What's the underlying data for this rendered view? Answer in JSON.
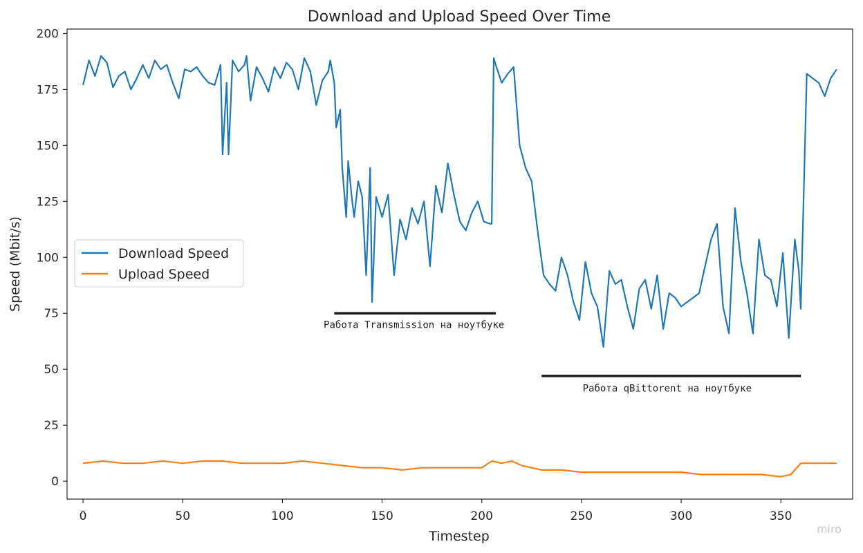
{
  "chart_data": {
    "type": "line",
    "title": "Download and Upload Speed Over Time",
    "xlabel": "Timestep",
    "ylabel": "Speed (Mbit/s)",
    "xlim": [
      -8,
      386
    ],
    "ylim": [
      -8,
      202
    ],
    "xticks": [
      0,
      50,
      100,
      150,
      200,
      250,
      300,
      350
    ],
    "yticks": [
      0,
      25,
      50,
      75,
      100,
      125,
      150,
      175,
      200
    ],
    "grid": false,
    "legend_position": "center-left",
    "series": [
      {
        "name": "Download Speed",
        "color": "#1f77b4",
        "x": [
          0,
          3,
          6,
          9,
          12,
          15,
          18,
          21,
          24,
          27,
          30,
          33,
          36,
          39,
          42,
          45,
          48,
          51,
          54,
          57,
          60,
          63,
          66,
          69,
          70,
          72,
          73,
          75,
          78,
          81,
          82,
          84,
          87,
          90,
          93,
          96,
          99,
          102,
          105,
          108,
          111,
          114,
          117,
          120,
          123,
          124,
          126,
          127,
          129,
          130,
          132,
          133,
          135,
          136,
          138,
          140,
          142,
          144,
          145,
          147,
          150,
          153,
          156,
          159,
          162,
          165,
          168,
          171,
          174,
          177,
          180,
          183,
          186,
          189,
          192,
          195,
          198,
          201,
          204,
          205,
          206,
          207,
          210,
          213,
          216,
          219,
          222,
          225,
          228,
          231,
          234,
          237,
          240,
          243,
          246,
          249,
          252,
          255,
          258,
          261,
          264,
          267,
          270,
          273,
          276,
          279,
          282,
          285,
          288,
          291,
          294,
          297,
          300,
          303,
          306,
          309,
          312,
          315,
          318,
          321,
          324,
          327,
          330,
          333,
          336,
          339,
          342,
          345,
          348,
          351,
          354,
          357,
          359,
          360,
          363,
          366,
          369,
          372,
          375,
          378
        ],
        "values": [
          177,
          188,
          181,
          190,
          187,
          176,
          181,
          183,
          175,
          180,
          186,
          180,
          188,
          184,
          186,
          178,
          171,
          184,
          183,
          185,
          181,
          178,
          177,
          186,
          146,
          178,
          146,
          188,
          183,
          186,
          190,
          170,
          185,
          180,
          174,
          185,
          180,
          187,
          184,
          175,
          189,
          183,
          168,
          179,
          183,
          188,
          178,
          158,
          166,
          140,
          118,
          143,
          125,
          118,
          134,
          127,
          92,
          140,
          80,
          127,
          118,
          128,
          92,
          117,
          108,
          122,
          115,
          125,
          96,
          132,
          120,
          142,
          128,
          116,
          112,
          120,
          125,
          116,
          115,
          115,
          189,
          186,
          178,
          182,
          185,
          150,
          140,
          134,
          112,
          92,
          88,
          85,
          100,
          92,
          80,
          72,
          98,
          84,
          78,
          60,
          94,
          88,
          90,
          78,
          68,
          86,
          90,
          77,
          92,
          68,
          84,
          82,
          78,
          80,
          82,
          84,
          96,
          108,
          115,
          78,
          66,
          122,
          98,
          84,
          66,
          108,
          92,
          90,
          78,
          102,
          64,
          108,
          94,
          77,
          182,
          180,
          178,
          172,
          180,
          184
        ]
      },
      {
        "name": "Upload Speed",
        "color": "#ff7f0e",
        "x": [
          0,
          10,
          20,
          30,
          40,
          50,
          60,
          70,
          80,
          90,
          100,
          110,
          120,
          130,
          140,
          150,
          160,
          170,
          180,
          190,
          200,
          205,
          210,
          215,
          220,
          230,
          240,
          250,
          260,
          270,
          280,
          290,
          300,
          310,
          320,
          330,
          340,
          350,
          355,
          360,
          365,
          370,
          375,
          378
        ],
        "values": [
          8,
          9,
          8,
          8,
          9,
          8,
          9,
          9,
          8,
          8,
          8,
          9,
          8,
          7,
          6,
          6,
          5,
          6,
          6,
          6,
          6,
          9,
          8,
          9,
          7,
          5,
          5,
          4,
          4,
          4,
          4,
          4,
          4,
          3,
          3,
          3,
          3,
          2,
          3,
          8,
          8,
          8,
          8,
          8
        ]
      }
    ],
    "annotations": [
      {
        "text": "Работа Transmission на ноутбуке",
        "x_start": 126,
        "x_end": 207,
        "y": 75,
        "text_x": 166,
        "text_y": 68.5
      },
      {
        "text": "Работа qBittorent на ноутбуке",
        "x_start": 230,
        "x_end": 360,
        "y": 47,
        "text_x": 293,
        "text_y": 40
      }
    ]
  },
  "watermark": "miro"
}
